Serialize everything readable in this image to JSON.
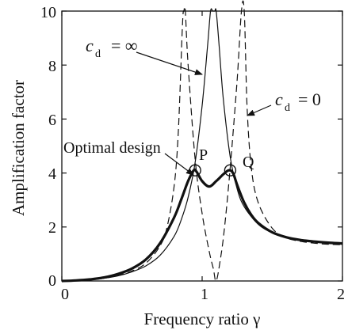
{
  "chart_data": {
    "type": "line",
    "title": "",
    "xlabel": "Frequency ratio γ",
    "ylabel": "Amplification factor",
    "xlim": [
      0,
      2
    ],
    "ylim": [
      0,
      10
    ],
    "xticks": [
      0,
      1,
      2
    ],
    "xtick_labels": [
      "0",
      "1",
      "2"
    ],
    "yticks": [
      0,
      2,
      4,
      6,
      8,
      10
    ],
    "ytick_labels": [
      "0",
      "2",
      "4",
      "6",
      "8",
      "10"
    ],
    "grid": false,
    "legend": "none",
    "series": [
      {
        "style": "solid-thin",
        "x": [
          0,
          0.1,
          0.2,
          0.3,
          0.4,
          0.5,
          0.6,
          0.7,
          0.8,
          0.85,
          0.9,
          0.95,
          1.0,
          1.04,
          1.06,
          1.075,
          1.09,
          1.1,
          1.12,
          1.15,
          1.2,
          1.25,
          1.3,
          1.4,
          1.5,
          1.6,
          1.7,
          1.8,
          1.9,
          2.0
        ],
        "y": [
          0.0,
          0.01,
          0.04,
          0.1,
          0.19,
          0.34,
          0.56,
          0.95,
          1.65,
          2.25,
          3.1,
          4.4,
          6.5,
          8.8,
          10.0,
          10.0,
          10.0,
          10.0,
          8.8,
          6.8,
          4.6,
          3.4,
          2.75,
          2.1,
          1.78,
          1.6,
          1.5,
          1.44,
          1.39,
          1.36
        ]
      },
      {
        "style": "dashed",
        "x": [
          0,
          0.1,
          0.2,
          0.3,
          0.4,
          0.5,
          0.6,
          0.7,
          0.75,
          0.8,
          0.83,
          0.86,
          0.87,
          0.88,
          0.9,
          0.95,
          1.0,
          1.05,
          1.08,
          1.1,
          1.13,
          1.16,
          1.2,
          1.25,
          1.28,
          1.3,
          1.32,
          1.35,
          1.4,
          1.5,
          1.6,
          1.7,
          1.8,
          1.9,
          2.0
        ],
        "y": [
          0.0,
          0.01,
          0.04,
          0.1,
          0.2,
          0.37,
          0.66,
          1.3,
          2.0,
          3.5,
          5.5,
          9.5,
          10.0,
          10.0,
          8.0,
          4.5,
          2.5,
          1.1,
          0.45,
          0.0,
          0.8,
          2.0,
          4.2,
          7.5,
          10.0,
          10.0,
          6.5,
          4.2,
          2.9,
          1.95,
          1.6,
          1.47,
          1.4,
          1.36,
          1.34
        ]
      },
      {
        "style": "solid-thick",
        "x": [
          0,
          0.1,
          0.2,
          0.3,
          0.4,
          0.5,
          0.6,
          0.7,
          0.8,
          0.85,
          0.9,
          0.94,
          0.96,
          1.0,
          1.05,
          1.1,
          1.15,
          1.19,
          1.22,
          1.25,
          1.3,
          1.35,
          1.4,
          1.5,
          1.6,
          1.7,
          1.8,
          1.9,
          2.0
        ],
        "y": [
          0.0,
          0.02,
          0.06,
          0.13,
          0.26,
          0.46,
          0.8,
          1.4,
          2.35,
          3.0,
          3.7,
          4.1,
          4.05,
          3.7,
          3.5,
          3.7,
          3.95,
          4.1,
          4.0,
          3.55,
          2.9,
          2.45,
          2.15,
          1.8,
          1.62,
          1.52,
          1.46,
          1.42,
          1.39
        ]
      }
    ],
    "markers": [
      {
        "label": "P",
        "x": 0.95,
        "y": 4.1
      },
      {
        "label": "Q",
        "x": 1.2,
        "y": 4.1
      }
    ],
    "annotations": {
      "cd_infinity": {
        "sym": "c",
        "sub": "d",
        "rhs": "= ∞"
      },
      "cd_zero": {
        "sym": "c",
        "sub": "d",
        "rhs": "= 0"
      },
      "optimal": "Optimal design"
    }
  }
}
